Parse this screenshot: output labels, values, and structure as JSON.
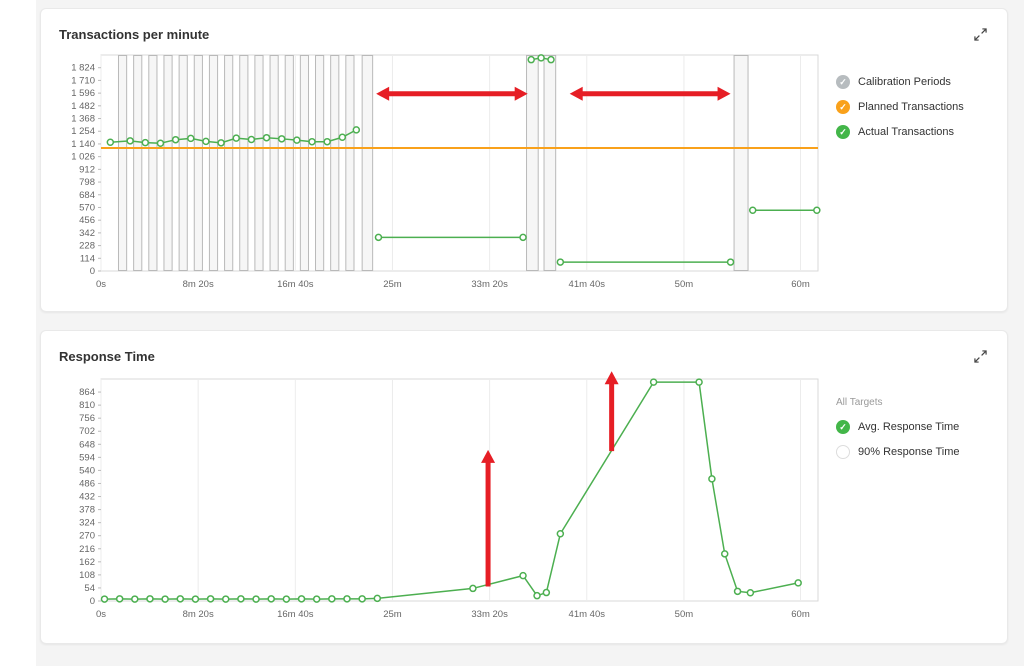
{
  "app": {
    "background": "#f4f4f4"
  },
  "panels": [
    {
      "title": "Transactions per minute",
      "legend_header": "",
      "legend": [
        {
          "label": "Calibration Periods",
          "color": "#b7bcbf",
          "checked": true
        },
        {
          "label": "Planned Transactions",
          "color": "#f9a11b",
          "checked": true
        },
        {
          "label": "Actual Transactions",
          "color": "#43b649",
          "checked": true
        }
      ]
    },
    {
      "title": "Response Time",
      "legend_header": "All Targets",
      "legend": [
        {
          "label": "Avg. Response Time",
          "color": "#43b649",
          "checked": true
        },
        {
          "label": "90% Response Time",
          "color": "#ffffff",
          "checked": false
        }
      ]
    }
  ],
  "chart_data": [
    {
      "type": "line",
      "title": "Transactions per minute",
      "xlim": [
        0,
        61.5
      ],
      "ylim": [
        0,
        1938
      ],
      "grid": "vertical",
      "legend_position": "right",
      "x_ticks": [
        {
          "v": 0,
          "label": "0s"
        },
        {
          "v": 8.333,
          "label": "8m 20s"
        },
        {
          "v": 16.667,
          "label": "16m 40s"
        },
        {
          "v": 25,
          "label": "25m"
        },
        {
          "v": 33.333,
          "label": "33m 20s"
        },
        {
          "v": 41.667,
          "label": "41m 40s"
        },
        {
          "v": 50,
          "label": "50m"
        },
        {
          "v": 60,
          "label": "60m"
        }
      ],
      "y_ticks": [
        0,
        114,
        228,
        342,
        456,
        570,
        684,
        798,
        912,
        1026,
        1140,
        1254,
        1368,
        1482,
        1596,
        1710,
        1824
      ],
      "y_tick_labels": [
        "0",
        "114",
        "228",
        "342",
        "456",
        "570",
        "684",
        "798",
        "912",
        "1 026",
        "1 140",
        "1 254",
        "1 368",
        "1 482",
        "1 596",
        "1 710",
        "1 824"
      ],
      "calibration_periods": [
        [
          1.5,
          2.2
        ],
        [
          2.8,
          3.5
        ],
        [
          4.1,
          4.8
        ],
        [
          5.4,
          6.1
        ],
        [
          6.7,
          7.4
        ],
        [
          8.0,
          8.7
        ],
        [
          9.3,
          10.0
        ],
        [
          10.6,
          11.3
        ],
        [
          11.9,
          12.6
        ],
        [
          13.2,
          13.9
        ],
        [
          14.5,
          15.2
        ],
        [
          15.8,
          16.5
        ],
        [
          17.1,
          17.8
        ],
        [
          18.4,
          19.1
        ],
        [
          19.7,
          20.4
        ],
        [
          21.0,
          21.7
        ],
        [
          22.4,
          23.3
        ],
        [
          36.5,
          37.5
        ],
        [
          38.0,
          39.0
        ],
        [
          54.3,
          55.5
        ]
      ],
      "series": [
        {
          "name": "Planned Transactions",
          "color": "#f9a11b",
          "markers": false,
          "width": 2,
          "points": [
            [
              0,
              1104
            ],
            [
              61.5,
              1104
            ]
          ]
        },
        {
          "name": "Actual Transactions",
          "color": "#4caf50",
          "markers": true,
          "width": 1.5,
          "segments": [
            [
              [
                0.8,
                1155
              ],
              [
                2.5,
                1168
              ],
              [
                3.8,
                1152
              ],
              [
                5.1,
                1146
              ],
              [
                6.4,
                1178
              ],
              [
                7.7,
                1190
              ],
              [
                9.0,
                1163
              ],
              [
                10.3,
                1150
              ],
              [
                11.6,
                1192
              ],
              [
                12.9,
                1180
              ],
              [
                14.2,
                1196
              ],
              [
                15.5,
                1186
              ],
              [
                16.8,
                1174
              ],
              [
                18.1,
                1160
              ],
              [
                19.4,
                1160
              ],
              [
                20.7,
                1200
              ],
              [
                21.9,
                1266
              ]
            ],
            [
              [
                23.8,
                302
              ],
              [
                36.2,
                302
              ]
            ],
            [
              [
                36.9,
                1896
              ],
              [
                37.75,
                1912
              ],
              [
                38.6,
                1896
              ]
            ],
            [
              [
                39.4,
                80
              ],
              [
                54.0,
                80
              ]
            ],
            [
              [
                55.9,
                545
              ],
              [
                61.4,
                545
              ]
            ]
          ]
        }
      ],
      "annotations": [
        {
          "type": "h-arrow",
          "x1": 23.6,
          "x2": 36.6,
          "y": 1590,
          "color": "#e61e25"
        },
        {
          "type": "h-arrow",
          "x1": 40.2,
          "x2": 54.0,
          "y": 1590,
          "color": "#e61e25"
        }
      ]
    },
    {
      "type": "line",
      "title": "Response Time",
      "xlim": [
        0,
        61.5
      ],
      "ylim": [
        0,
        918
      ],
      "grid": "vertical",
      "legend_position": "right",
      "x_ticks": [
        {
          "v": 0,
          "label": "0s"
        },
        {
          "v": 8.333,
          "label": "8m 20s"
        },
        {
          "v": 16.667,
          "label": "16m 40s"
        },
        {
          "v": 25,
          "label": "25m"
        },
        {
          "v": 33.333,
          "label": "33m 20s"
        },
        {
          "v": 41.667,
          "label": "41m 40s"
        },
        {
          "v": 50,
          "label": "50m"
        },
        {
          "v": 60,
          "label": "60m"
        }
      ],
      "y_ticks": [
        0,
        54,
        108,
        162,
        216,
        270,
        324,
        378,
        432,
        486,
        540,
        594,
        648,
        702,
        756,
        810,
        864
      ],
      "y_tick_labels": [
        "0",
        "54",
        "108",
        "162",
        "216",
        "270",
        "324",
        "378",
        "432",
        "486",
        "540",
        "594",
        "648",
        "702",
        "756",
        "810",
        "864"
      ],
      "calibration_periods": [],
      "series": [
        {
          "name": "Avg. Response Time",
          "color": "#4caf50",
          "markers": true,
          "width": 1.5,
          "points": [
            [
              0.3,
              8
            ],
            [
              1.6,
              9
            ],
            [
              2.9,
              8
            ],
            [
              4.2,
              9
            ],
            [
              5.5,
              8
            ],
            [
              6.8,
              9
            ],
            [
              8.1,
              8
            ],
            [
              9.4,
              9
            ],
            [
              10.7,
              8
            ],
            [
              12.0,
              9
            ],
            [
              13.3,
              8
            ],
            [
              14.6,
              9
            ],
            [
              15.9,
              8
            ],
            [
              17.2,
              9
            ],
            [
              18.5,
              8
            ],
            [
              19.8,
              9
            ],
            [
              21.1,
              9
            ],
            [
              22.4,
              9
            ],
            [
              23.7,
              11
            ],
            [
              31.9,
              52
            ],
            [
              36.2,
              105
            ],
            [
              37.4,
              22
            ],
            [
              38.2,
              35
            ],
            [
              39.4,
              278
            ],
            [
              47.4,
              905
            ],
            [
              51.3,
              905
            ],
            [
              52.4,
              505
            ],
            [
              53.5,
              195
            ],
            [
              54.6,
              40
            ],
            [
              55.7,
              34
            ],
            [
              59.8,
              75
            ]
          ]
        }
      ],
      "annotations": [
        {
          "type": "v-arrow",
          "x": 33.2,
          "y1": 60,
          "y2": 625,
          "color": "#e61e25"
        },
        {
          "type": "v-arrow",
          "x": 43.8,
          "y1": 620,
          "y2": 950,
          "color": "#e61e25"
        }
      ]
    }
  ]
}
